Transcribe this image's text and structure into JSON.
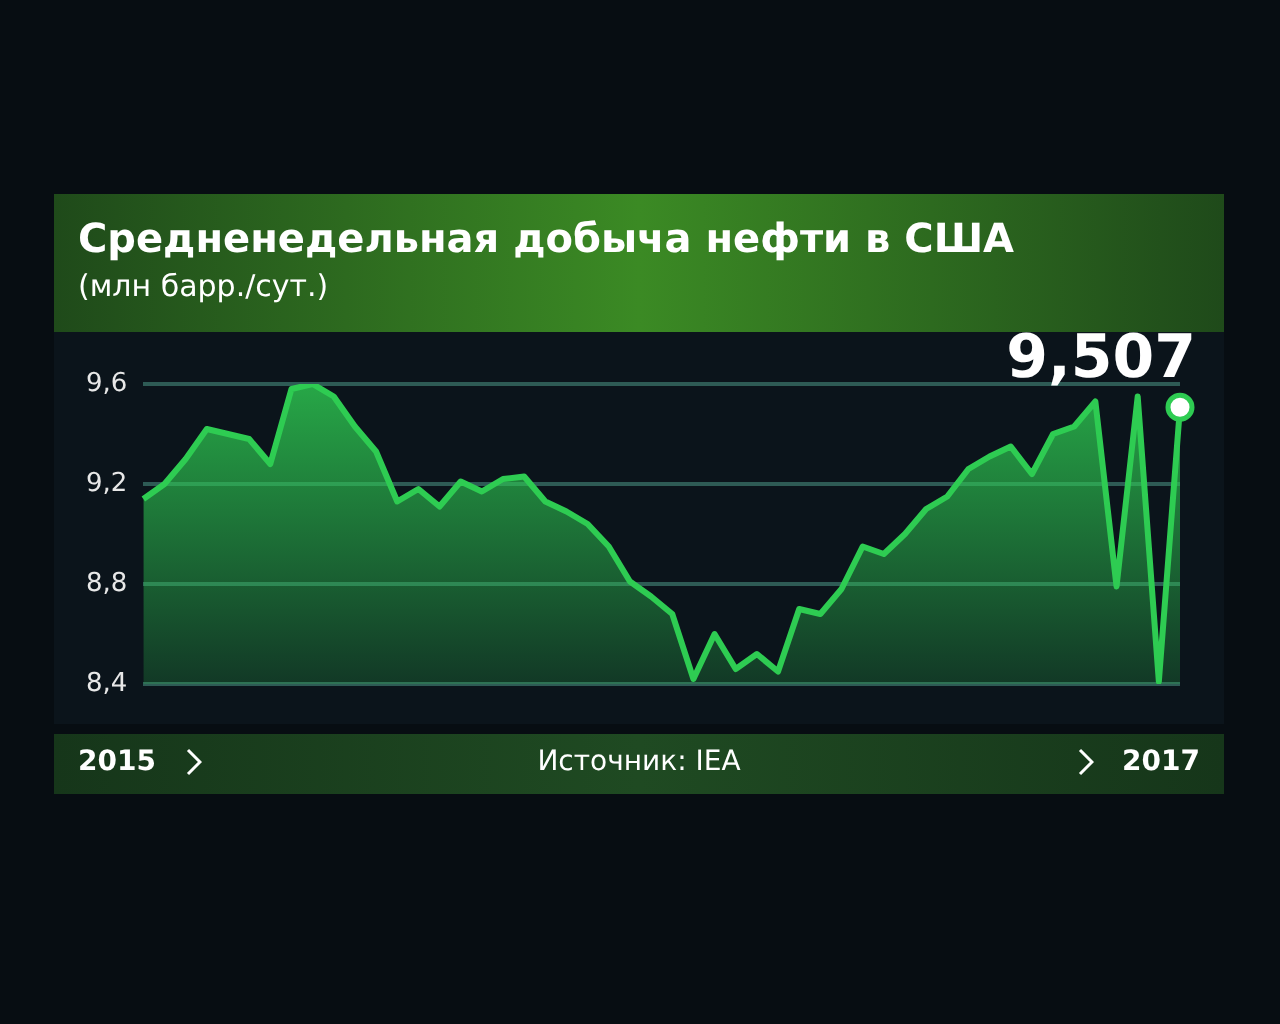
{
  "chart_data": {
    "type": "area",
    "title": "Средненедельная добыча нефти в США",
    "subtitle": "(млн барр./сут.)",
    "categories": [
      null,
      null,
      null,
      null,
      null,
      null,
      null,
      null,
      null,
      null,
      null,
      null,
      null,
      null,
      null,
      null,
      null,
      null,
      null,
      null,
      null,
      null,
      null,
      null,
      null,
      null,
      null,
      null,
      null,
      null,
      null,
      null,
      null,
      null,
      null,
      null,
      null,
      null,
      null,
      null,
      null,
      null,
      null,
      null,
      null,
      null,
      null,
      null,
      null,
      null
    ],
    "series": [
      {
        "color": "#2ecc52",
        "values": [
          9.14,
          9.2,
          9.3,
          9.42,
          9.4,
          9.38,
          9.28,
          9.58,
          9.6,
          9.55,
          9.43,
          9.33,
          9.13,
          9.18,
          9.11,
          9.21,
          9.17,
          9.22,
          9.23,
          9.13,
          9.09,
          9.04,
          8.95,
          8.81,
          8.75,
          8.68,
          8.42,
          8.6,
          8.46,
          8.52,
          8.45,
          8.7,
          8.68,
          8.78,
          8.95,
          8.92,
          9.0,
          9.1,
          9.15,
          9.26,
          9.31,
          9.35,
          9.24,
          9.4,
          9.43,
          9.53,
          8.79,
          9.55,
          8.41,
          9.507
        ]
      }
    ],
    "ylim": [
      8.4,
      9.6
    ],
    "yticks": [
      {
        "value": 8.4,
        "label": "8,4"
      },
      {
        "value": 8.8,
        "label": "8,8"
      },
      {
        "value": 9.2,
        "label": "9,2"
      },
      {
        "value": 9.6,
        "label": "9,6"
      }
    ],
    "grid": "y",
    "legend": false,
    "marker": "none",
    "tick_labels": "y",
    "annotations": [
      {
        "text": "9,507",
        "y": 9.507
      },
      "2015",
      "Источник: IEA",
      "2017"
    ]
  }
}
